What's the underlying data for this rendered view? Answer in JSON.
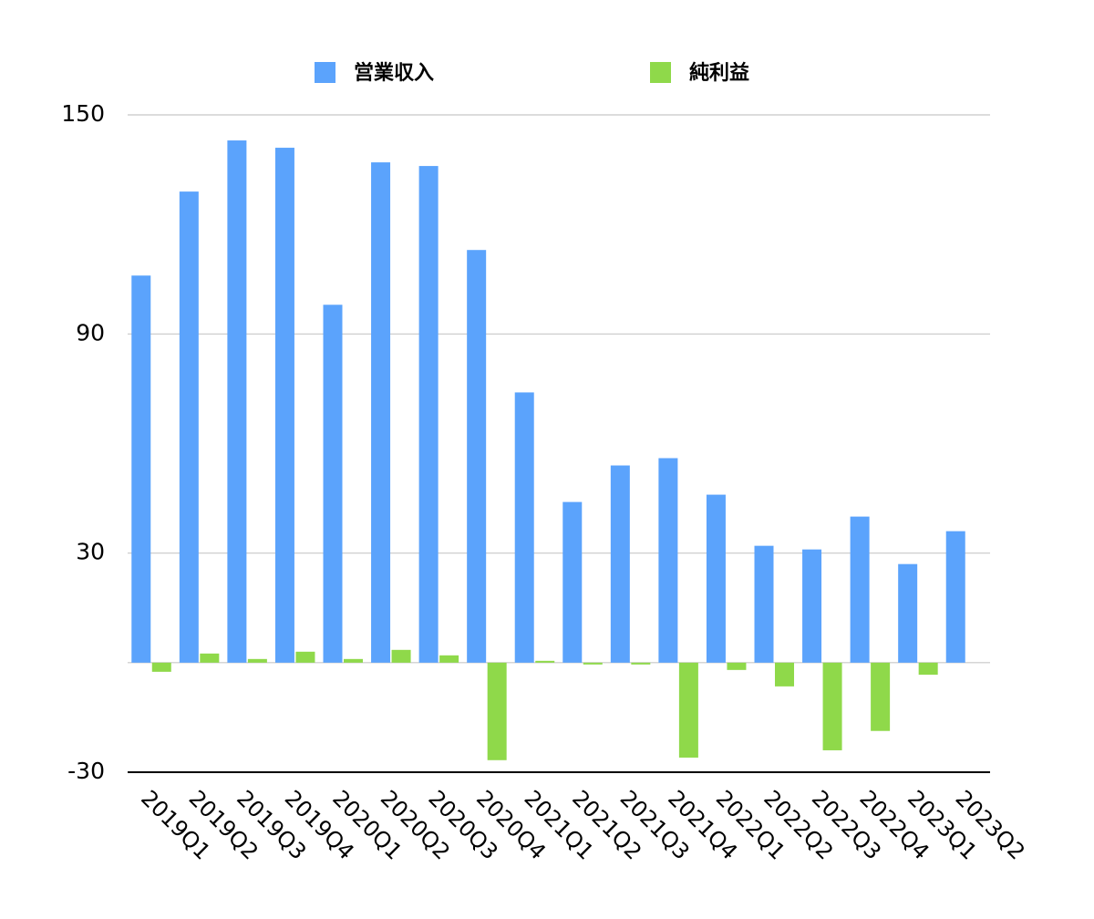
{
  "chart_data": {
    "type": "bar",
    "categories": [
      "2019Q1",
      "2019Q2",
      "2019Q3",
      "2019Q4",
      "2020Q1",
      "2020Q2",
      "2020Q3",
      "2020Q4",
      "2021Q1",
      "2021Q2",
      "2021Q3",
      "2021Q4",
      "2022Q1",
      "2022Q2",
      "2022Q3",
      "2022Q4",
      "2023Q1",
      "2023Q2"
    ],
    "series": [
      {
        "name": "営業収入",
        "color": "#5ba3fc",
        "values": [
          106,
          129,
          143,
          141,
          98,
          137,
          136,
          113,
          74,
          44,
          54,
          56,
          46,
          32,
          31,
          40,
          27,
          36
        ]
      },
      {
        "name": "純利益",
        "color": "#8fd94a",
        "values": [
          -2.5,
          2.5,
          1,
          3,
          1,
          3.5,
          2,
          -26.7,
          0.5,
          -0.5,
          -0.5,
          -26,
          -2,
          -6.5,
          -24,
          -18.7,
          -3.3,
          null
        ]
      }
    ],
    "ylim": [
      -30,
      150
    ],
    "yticks": [
      -30,
      30,
      90,
      150
    ],
    "grid": true
  }
}
